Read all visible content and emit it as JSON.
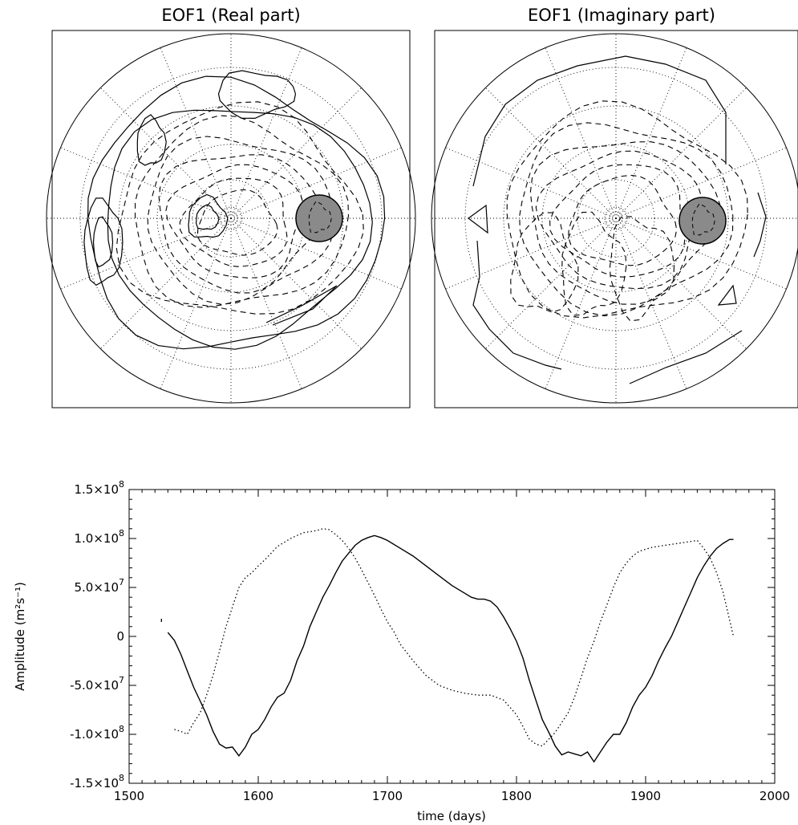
{
  "chart_data": [
    {
      "type": "contour-map",
      "title": "EOF1 (Real part)",
      "projection": "polar",
      "grid": true,
      "marker": {
        "type": "filled-circle",
        "color": "#8a8a8a"
      }
    },
    {
      "type": "contour-map",
      "title": "EOF1 (Imaginary part)",
      "projection": "polar",
      "grid": true,
      "marker": {
        "type": "filled-circle",
        "color": "#8a8a8a"
      }
    },
    {
      "type": "line",
      "title": "",
      "xlabel": "time (days)",
      "ylabel": "Amplitude (m²s⁻¹)",
      "xlim": [
        1500,
        2000
      ],
      "ylim": [
        -150000000,
        150000000
      ],
      "xticks": [
        1500,
        1600,
        1700,
        1800,
        1900,
        2000
      ],
      "xtick_labels": [
        "1500",
        "1600",
        "1700",
        "1800",
        "1900",
        "2000"
      ],
      "yticks": [
        150000000,
        100000000,
        50000000,
        0,
        -50000000,
        -100000000,
        -150000000
      ],
      "ytick_labels": [
        {
          "mantissa": "1.5×10",
          "exp": "8"
        },
        {
          "mantissa": "1.0×10",
          "exp": "8"
        },
        {
          "mantissa": "5.0×10",
          "exp": "7"
        },
        {
          "mantissa": "0",
          "exp": ""
        },
        {
          "mantissa": "-5.0×10",
          "exp": "7"
        },
        {
          "mantissa": "-1.0×10",
          "exp": "8"
        },
        {
          "mantissa": "-1.5×10",
          "exp": "8"
        }
      ],
      "series": [
        {
          "style": "solid",
          "x": [
            1530,
            1535,
            1540,
            1545,
            1550,
            1555,
            1560,
            1565,
            1570,
            1575,
            1580,
            1585,
            1590,
            1595,
            1600,
            1605,
            1610,
            1615,
            1620,
            1625,
            1630,
            1635,
            1640,
            1645,
            1650,
            1655,
            1660,
            1665,
            1670,
            1675,
            1680,
            1685,
            1690,
            1695,
            1700,
            1710,
            1720,
            1730,
            1740,
            1750,
            1760,
            1765,
            1770,
            1775,
            1780,
            1785,
            1790,
            1795,
            1800,
            1805,
            1810,
            1815,
            1820,
            1825,
            1830,
            1835,
            1840,
            1845,
            1850,
            1855,
            1860,
            1865,
            1870,
            1875,
            1880,
            1885,
            1890,
            1895,
            1900,
            1905,
            1910,
            1915,
            1920,
            1925,
            1930,
            1935,
            1940,
            1945,
            1950,
            1955,
            1960,
            1965,
            1968
          ],
          "y": [
            4,
            -4,
            -18,
            -35,
            -52,
            -66,
            -80,
            -97,
            -110,
            -114,
            -113,
            -122,
            -113,
            -100,
            -95,
            -85,
            -72,
            -62,
            -58,
            -45,
            -25,
            -10,
            10,
            25,
            40,
            52,
            65,
            77,
            85,
            93,
            98,
            101,
            103,
            101,
            98,
            90,
            82,
            72,
            62,
            52,
            44,
            40,
            38,
            38,
            36,
            30,
            20,
            8,
            -5,
            -22,
            -45,
            -65,
            -85,
            -98,
            -112,
            -121,
            -118,
            -120,
            -122,
            -118,
            -128,
            -118,
            -108,
            -100,
            -100,
            -88,
            -72,
            -60,
            -52,
            -40,
            -25,
            -12,
            0,
            15,
            30,
            45,
            60,
            72,
            82,
            90,
            95,
            99,
            99
          ]
        },
        {
          "style": "dotted",
          "x": [
            1525,
            1530,
            1535,
            1540,
            1545,
            1550,
            1555,
            1560,
            1565,
            1570,
            1575,
            1580,
            1585,
            1590,
            1595,
            1600,
            1605,
            1610,
            1615,
            1620,
            1625,
            1630,
            1635,
            1640,
            1645,
            1650,
            1655,
            1660,
            1665,
            1670,
            1675,
            1680,
            1685,
            1690,
            1695,
            1700,
            1705,
            1710,
            1720,
            1730,
            1740,
            1750,
            1760,
            1770,
            1780,
            1790,
            1800,
            1805,
            1810,
            1815,
            1820,
            1825,
            1830,
            1835,
            1840,
            1845,
            1850,
            1855,
            1860,
            1865,
            1870,
            1875,
            1880,
            1885,
            1890,
            1895,
            1900,
            1905,
            1910,
            1915,
            1920,
            1925,
            1930,
            1935,
            1940,
            1945,
            1950,
            1955,
            1960,
            1968
          ],
          "y": [
            18,
            null,
            -95,
            -97,
            -100,
            -88,
            -78,
            -60,
            -40,
            -15,
            10,
            30,
            50,
            60,
            65,
            72,
            78,
            85,
            92,
            96,
            100,
            103,
            106,
            107,
            108,
            110,
            109,
            104,
            98,
            90,
            80,
            68,
            55,
            42,
            28,
            15,
            5,
            -8,
            -25,
            -40,
            -50,
            -55,
            -58,
            -60,
            -60,
            -65,
            -80,
            -92,
            -105,
            -110,
            -112,
            -105,
            -98,
            -88,
            -78,
            -62,
            -42,
            -22,
            -5,
            15,
            32,
            50,
            65,
            75,
            82,
            87,
            89,
            91,
            92,
            93,
            94,
            95,
            96,
            97,
            98,
            90,
            80,
            65,
            45,
            0
          ]
        }
      ],
      "y_unit_scale": 1000000
    }
  ]
}
